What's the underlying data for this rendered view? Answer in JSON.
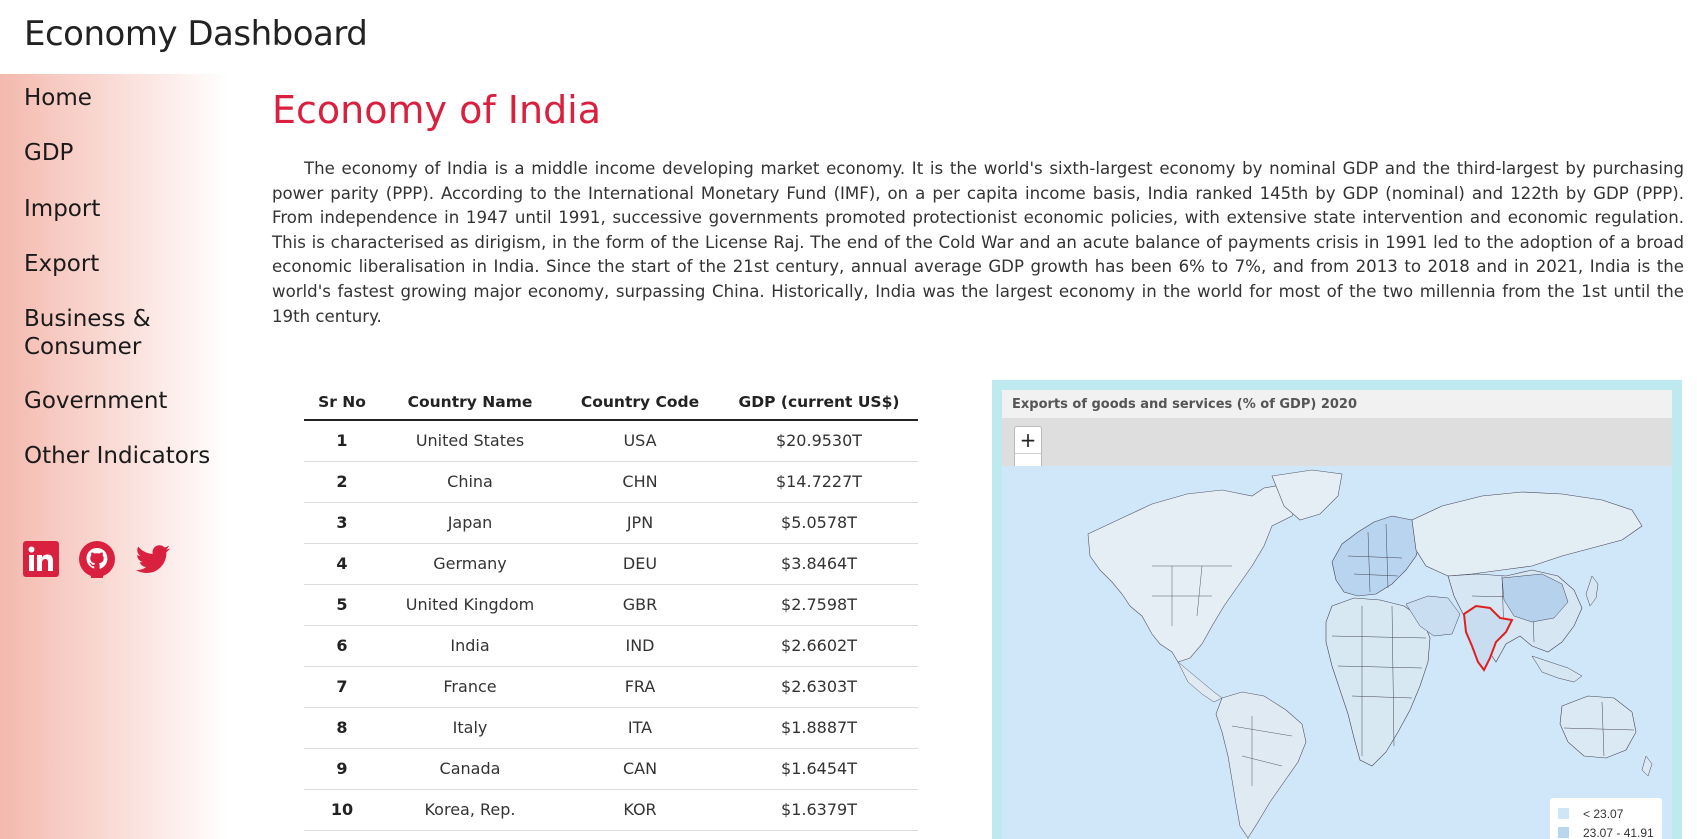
{
  "header": {
    "brand": "Economy Dashboard"
  },
  "sidebar": {
    "items": [
      {
        "label": "Home"
      },
      {
        "label": "GDP"
      },
      {
        "label": "Import"
      },
      {
        "label": "Export"
      },
      {
        "label": "Business & Consumer"
      },
      {
        "label": "Government"
      },
      {
        "label": "Other Indicators"
      }
    ],
    "social": [
      "linkedin-icon",
      "github-icon",
      "twitter-icon"
    ],
    "social_color": "#d9203f"
  },
  "main": {
    "title": "Economy of India",
    "intro": "The economy of India is a middle income developing market economy. It is the world's sixth-largest economy by nominal GDP and the third-largest by purchasing power parity (PPP). According to the International Monetary Fund (IMF), on a per capita income basis, India ranked 145th by GDP (nominal) and 122th by GDP (PPP). From independence in 1947 until 1991, successive governments promoted protectionist economic policies, with extensive state intervention and economic regulation. This is characterised as dirigism, in the form of the License Raj. The end of the Cold War and an acute balance of payments crisis in 1991 led to the adoption of a broad economic liberalisation in India. Since the start of the 21st century, annual average GDP growth has been 6% to 7%, and from 2013 to 2018 and in 2021, India is the world's fastest growing major economy, surpassing China. Historically, India was the largest economy in the world for most of the two millennia from the 1st until the 19th century."
  },
  "table": {
    "headers": [
      "Sr No",
      "Country Name",
      "Country Code",
      "GDP (current US$)"
    ],
    "rows": [
      [
        "1",
        "United States",
        "USA",
        "$20.9530T"
      ],
      [
        "2",
        "China",
        "CHN",
        "$14.7227T"
      ],
      [
        "3",
        "Japan",
        "JPN",
        "$5.0578T"
      ],
      [
        "4",
        "Germany",
        "DEU",
        "$3.8464T"
      ],
      [
        "5",
        "United Kingdom",
        "GBR",
        "$2.7598T"
      ],
      [
        "6",
        "India",
        "IND",
        "$2.6602T"
      ],
      [
        "7",
        "France",
        "FRA",
        "$2.6303T"
      ],
      [
        "8",
        "Italy",
        "ITA",
        "$1.8887T"
      ],
      [
        "9",
        "Canada",
        "CAN",
        "$1.6454T"
      ],
      [
        "10",
        "Korea, Rep.",
        "KOR",
        "$1.6379T"
      ]
    ]
  },
  "map": {
    "title": "Exports of goods and services (% of GDP) 2020",
    "zoom_in": "+",
    "zoom_out": "−",
    "legend": [
      {
        "label": "< 23.07",
        "color": "#cfe6f8"
      },
      {
        "label": "23.07 - 41.91",
        "color": "#b7d6f0"
      }
    ],
    "highlight_color": "#e02020"
  }
}
